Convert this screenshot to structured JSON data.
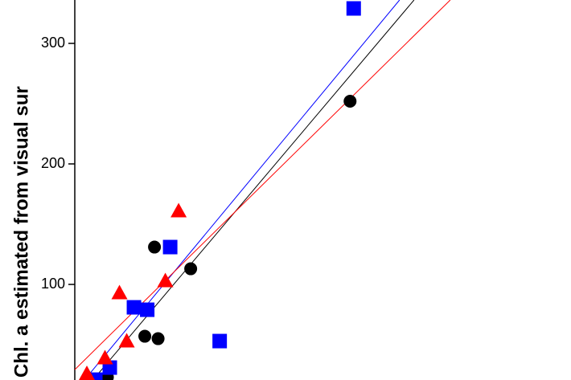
{
  "chart_data": {
    "type": "scatter",
    "y_label": "Chl. a estimated from visual sur",
    "xlim": [
      20,
      431
    ],
    "ylim": [
      20.7,
      336
    ],
    "yticks": [
      100,
      200,
      300
    ],
    "series": [
      {
        "marker": "circle",
        "color": "#000000",
        "x": [
          248,
          116,
          86,
          78,
          89,
          47
        ],
        "values": [
          252,
          113,
          131,
          57,
          55,
          23
        ]
      },
      {
        "marker": "square",
        "color": "#0000ff",
        "x": [
          251,
          99,
          69,
          80,
          140,
          49,
          37
        ],
        "values": [
          329,
          131,
          81,
          79,
          53,
          31,
          21
        ]
      },
      {
        "marker": "triangle",
        "color": "#ff0000",
        "x": [
          106,
          57,
          95,
          63,
          45,
          30
        ],
        "values": [
          161,
          93,
          103,
          53,
          39,
          26
        ]
      }
    ],
    "fit_lines": [
      {
        "color": "#0000ff",
        "x": [
          28,
          289
        ],
        "values": [
          20.7,
          336
        ]
      },
      {
        "color": "#000000",
        "x": [
          35,
          301
        ],
        "values": [
          20.7,
          336
        ]
      },
      {
        "color": "#ff0000",
        "x": [
          20,
          331
        ],
        "values": [
          29.3,
          336
        ]
      }
    ]
  }
}
